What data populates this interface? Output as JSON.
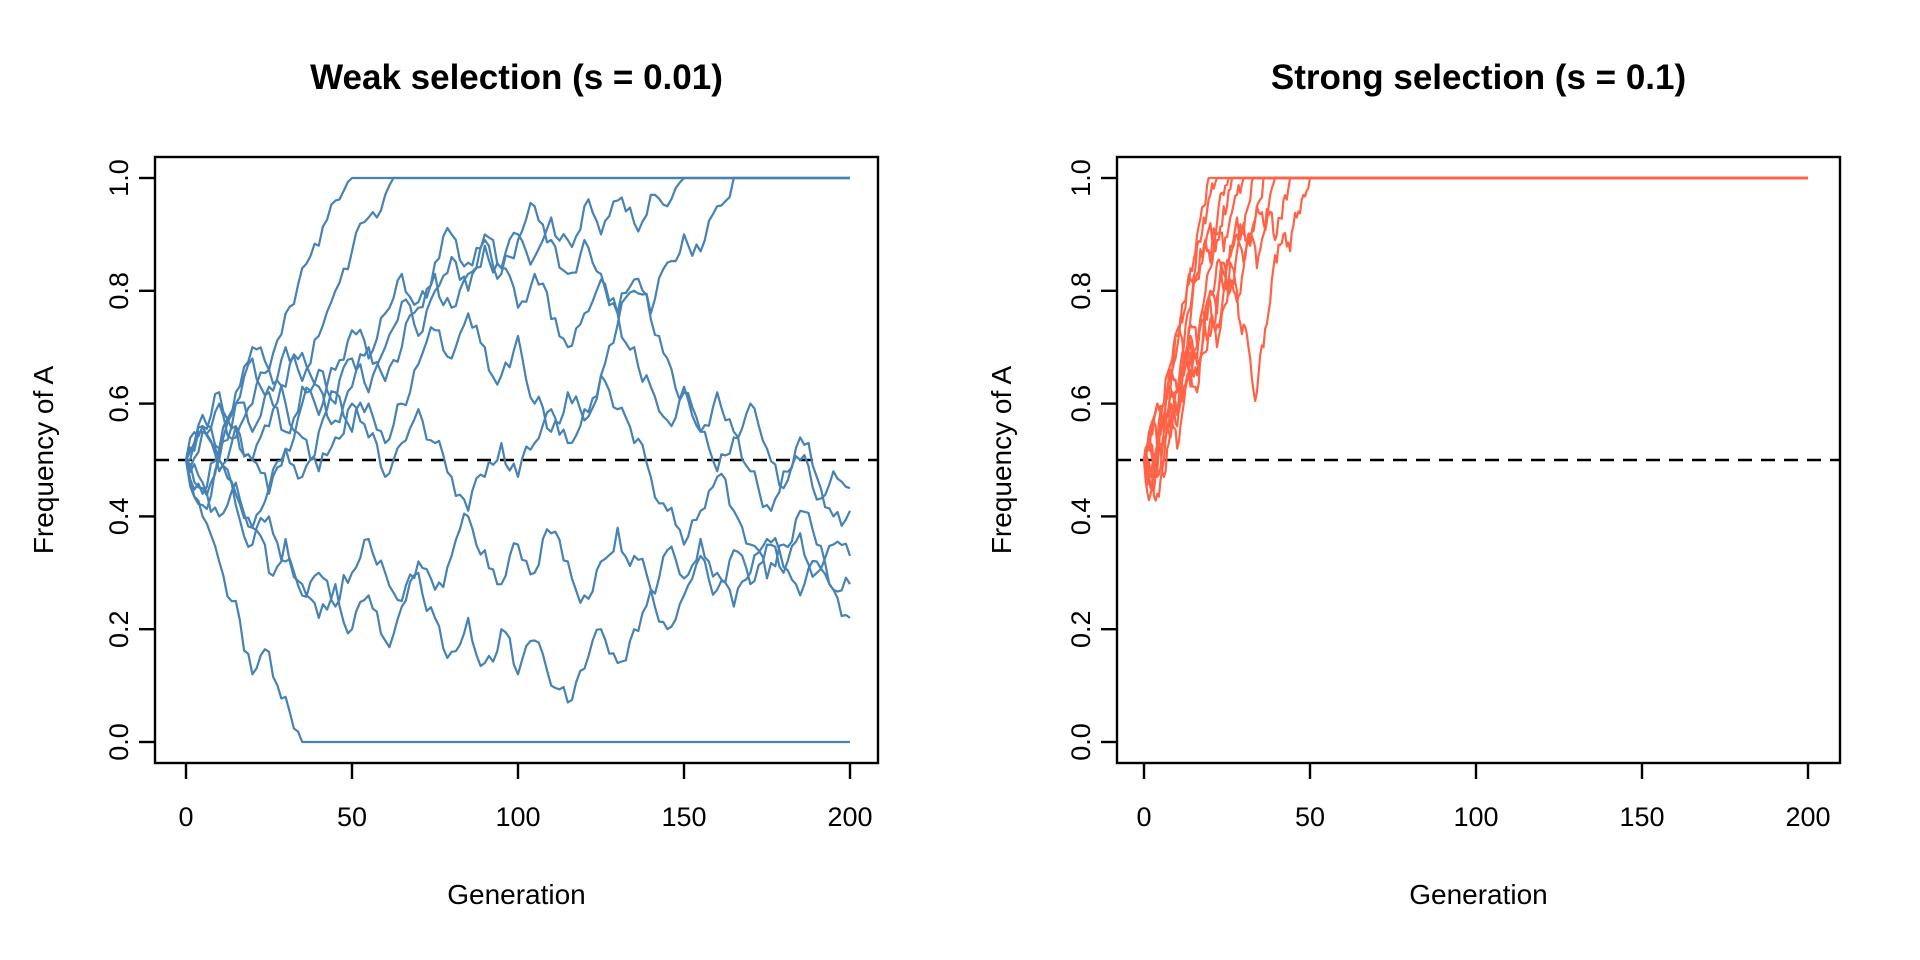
{
  "figure": {
    "background": "#ffffff",
    "n_panels": 2
  },
  "chart_data": [
    {
      "type": "line",
      "panel": "weak-selection",
      "title": "Weak selection (s = 0.01)",
      "selection_coefficient": 0.01,
      "xlabel": "Generation",
      "ylabel": "Frequency of A",
      "xlim": [
        0,
        200
      ],
      "ylim": [
        0.0,
        1.0
      ],
      "xticks": [
        0,
        50,
        100,
        150,
        200
      ],
      "ytick_values": [
        0.0,
        0.2,
        0.4,
        0.6,
        0.8,
        1.0
      ],
      "ytick_labels": [
        "0.0",
        "0.2",
        "0.4",
        "0.6",
        "0.8",
        "1.0"
      ],
      "grid": false,
      "legend": null,
      "line_color": "#4682B4",
      "reference_line": {
        "y": 0.5,
        "style": "dashed",
        "color": "#000000"
      },
      "start_frequency": 0.5,
      "n_replicates": 10,
      "x_step": 5,
      "series": [
        {
          "name": "rep-1",
          "fate": "fixed-at-1",
          "values": [
            0.5,
            0.56,
            0.5,
            0.62,
            0.7,
            0.66,
            0.76,
            0.84,
            0.88,
            0.96,
            1
          ]
        },
        {
          "name": "rep-2",
          "fate": "fixed-at-1",
          "values": [
            0.5,
            0.45,
            0.52,
            0.6,
            0.55,
            0.63,
            0.7,
            0.64,
            0.72,
            0.8,
            0.87,
            0.93,
            0.97,
            1
          ]
        },
        {
          "name": "rep-3",
          "fate": "fixed-at-1",
          "values": [
            0.5,
            0.55,
            0.48,
            0.56,
            0.5,
            0.44,
            0.52,
            0.6,
            0.66,
            0.6,
            0.68,
            0.62,
            0.7,
            0.78,
            0.72,
            0.8,
            0.86,
            0.8,
            0.88,
            0.84,
            0.9,
            0.86,
            0.93,
            0.89,
            0.95,
            0.9,
            0.96,
            0.92,
            0.97,
            0.95,
            1
          ]
        },
        {
          "name": "rep-4",
          "fate": "fixed-at-1",
          "values": [
            0.5,
            0.42,
            0.5,
            0.44,
            0.38,
            0.45,
            0.52,
            0.47,
            0.55,
            0.62,
            0.55,
            0.6,
            0.53,
            0.6,
            0.67,
            0.73,
            0.68,
            0.76,
            0.7,
            0.65,
            0.72,
            0.6,
            0.55,
            0.62,
            0.57,
            0.65,
            0.74,
            0.8,
            0.76,
            0.85,
            0.9,
            0.87,
            0.95,
            1
          ]
        },
        {
          "name": "rep-5",
          "fate": "lost-at-0",
          "values": [
            0.5,
            0.4,
            0.32,
            0.25,
            0.12,
            0.16,
            0.08,
            0
          ]
        },
        {
          "name": "rep-6",
          "fate": "segregating",
          "values": [
            0.5,
            0.44,
            0.5,
            0.42,
            0.35,
            0.4,
            0.32,
            0.26,
            0.3,
            0.24,
            0.3,
            0.36,
            0.3,
            0.25,
            0.32,
            0.27,
            0.33,
            0.4,
            0.34,
            0.28,
            0.35,
            0.3,
            0.37,
            0.32,
            0.26,
            0.32,
            0.38,
            0.33,
            0.27,
            0.34,
            0.29,
            0.36,
            0.3,
            0.24,
            0.3,
            0.36,
            0.31,
            0.26,
            0.32,
            0.27,
            0.28
          ]
        },
        {
          "name": "rep-7",
          "fate": "segregating",
          "values": [
            0.5,
            0.58,
            0.52,
            0.6,
            0.68,
            0.62,
            0.55,
            0.63,
            0.58,
            0.66,
            0.73,
            0.68,
            0.76,
            0.83,
            0.78,
            0.85,
            0.9,
            0.85,
            0.9,
            0.84,
            0.77,
            0.83,
            0.75,
            0.7,
            0.76,
            0.82,
            0.76,
            0.7,
            0.63,
            0.57,
            0.63,
            0.55,
            0.48,
            0.54,
            0.6,
            0.52,
            0.45,
            0.5,
            0.43,
            0.48,
            0.45
          ]
        },
        {
          "name": "rep-8",
          "fate": "segregating",
          "values": [
            0.5,
            0.46,
            0.4,
            0.46,
            0.38,
            0.3,
            0.36,
            0.28,
            0.22,
            0.28,
            0.2,
            0.26,
            0.18,
            0.24,
            0.3,
            0.22,
            0.16,
            0.22,
            0.14,
            0.2,
            0.12,
            0.18,
            0.1,
            0.07,
            0.13,
            0.2,
            0.14,
            0.2,
            0.27,
            0.2,
            0.26,
            0.33,
            0.27,
            0.34,
            0.28,
            0.35,
            0.3,
            0.37,
            0.3,
            0.35,
            0.33
          ]
        },
        {
          "name": "rep-9",
          "fate": "segregating",
          "values": [
            0.5,
            0.55,
            0.6,
            0.54,
            0.6,
            0.66,
            0.6,
            0.54,
            0.48,
            0.54,
            0.6,
            0.54,
            0.47,
            0.53,
            0.59,
            0.53,
            0.47,
            0.41,
            0.47,
            0.53,
            0.47,
            0.53,
            0.59,
            0.53,
            0.59,
            0.65,
            0.59,
            0.53,
            0.47,
            0.41,
            0.35,
            0.41,
            0.47,
            0.41,
            0.35,
            0.29,
            0.35,
            0.41,
            0.35,
            0.27,
            0.22
          ]
        },
        {
          "name": "rep-10",
          "fate": "segregating",
          "values": [
            0.5,
            0.56,
            0.62,
            0.56,
            0.5,
            0.56,
            0.63,
            0.69,
            0.63,
            0.57,
            0.63,
            0.7,
            0.64,
            0.7,
            0.77,
            0.83,
            0.77,
            0.83,
            0.89,
            0.83,
            0.89,
            0.95,
            0.89,
            0.83,
            0.89,
            0.83,
            0.76,
            0.82,
            0.75,
            0.68,
            0.62,
            0.55,
            0.62,
            0.55,
            0.48,
            0.42,
            0.48,
            0.54,
            0.47,
            0.4,
            0.41
          ]
        }
      ]
    },
    {
      "type": "line",
      "panel": "strong-selection",
      "title": "Strong selection (s = 0.1)",
      "selection_coefficient": 0.1,
      "xlabel": "Generation",
      "ylabel": "Frequency of A",
      "xlim": [
        0,
        200
      ],
      "ylim": [
        0.0,
        1.0
      ],
      "xticks": [
        0,
        50,
        100,
        150,
        200
      ],
      "ytick_values": [
        0.0,
        0.2,
        0.4,
        0.6,
        0.8,
        1.0
      ],
      "ytick_labels": [
        "0.0",
        "0.2",
        "0.4",
        "0.6",
        "0.8",
        "1.0"
      ],
      "grid": false,
      "legend": null,
      "line_color": "#FF6347",
      "reference_line": {
        "y": 0.5,
        "style": "dashed",
        "color": "#000000"
      },
      "start_frequency": 0.5,
      "n_replicates": 10,
      "x_step": 2,
      "series": [
        {
          "name": "rep-1",
          "fate": "fixed-at-1",
          "values": [
            0.5,
            0.44,
            0.5,
            0.58,
            0.65,
            0.72,
            0.78,
            0.84,
            0.9,
            0.95,
            1
          ]
        },
        {
          "name": "rep-2",
          "fate": "fixed-at-1",
          "values": [
            0.5,
            0.54,
            0.6,
            0.55,
            0.63,
            0.7,
            0.76,
            0.82,
            0.88,
            0.93,
            0.97,
            1
          ]
        },
        {
          "name": "rep-3",
          "fate": "fixed-at-1",
          "values": [
            0.5,
            0.47,
            0.53,
            0.6,
            0.66,
            0.62,
            0.7,
            0.77,
            0.83,
            0.88,
            0.85,
            0.92,
            0.97,
            1
          ]
        },
        {
          "name": "rep-4",
          "fate": "fixed-at-1",
          "values": [
            0.5,
            0.56,
            0.52,
            0.6,
            0.67,
            0.73,
            0.68,
            0.75,
            0.82,
            0.87,
            0.92,
            0.89,
            0.95,
            0.98,
            1
          ]
        },
        {
          "name": "rep-5",
          "fate": "fixed-at-1",
          "values": [
            0.5,
            0.46,
            0.52,
            0.58,
            0.54,
            0.62,
            0.68,
            0.74,
            0.7,
            0.78,
            0.84,
            0.9,
            0.87,
            0.93,
            0.97,
            1
          ]
        },
        {
          "name": "rep-6",
          "fate": "fixed-at-1",
          "values": [
            0.5,
            0.53,
            0.48,
            0.55,
            0.62,
            0.58,
            0.65,
            0.71,
            0.67,
            0.74,
            0.8,
            0.76,
            0.83,
            0.88,
            0.93,
            0.9,
            0.96,
            1
          ]
        },
        {
          "name": "rep-7",
          "fate": "fixed-at-1",
          "values": [
            0.5,
            0.45,
            0.52,
            0.47,
            0.55,
            0.62,
            0.68,
            0.63,
            0.7,
            0.76,
            0.72,
            0.79,
            0.85,
            0.8,
            0.87,
            0.92,
            0.88,
            0.95,
            1
          ]
        },
        {
          "name": "rep-8",
          "fate": "fixed-at-1",
          "values": [
            0.5,
            0.55,
            0.6,
            0.56,
            0.63,
            0.58,
            0.66,
            0.72,
            0.68,
            0.75,
            0.8,
            0.85,
            0.8,
            0.86,
            0.9,
            0.85,
            0.9,
            0.95,
            0.92,
            0.97,
            1
          ]
        },
        {
          "name": "rep-9",
          "fate": "fixed-at-1",
          "values": [
            0.5,
            0.48,
            0.44,
            0.5,
            0.57,
            0.52,
            0.6,
            0.66,
            0.62,
            0.69,
            0.75,
            0.7,
            0.77,
            0.82,
            0.78,
            0.84,
            0.88,
            0.84,
            0.9,
            0.94,
            0.9,
            0.96,
            1
          ]
        },
        {
          "name": "rep-10",
          "fate": "fixed-at-1",
          "values": [
            0.5,
            0.52,
            0.47,
            0.54,
            0.6,
            0.56,
            0.63,
            0.69,
            0.65,
            0.72,
            0.78,
            0.74,
            0.8,
            0.85,
            0.8,
            0.74,
            0.68,
            0.62,
            0.7,
            0.78,
            0.85,
            0.9,
            0.87,
            0.93,
            0.97,
            1
          ]
        }
      ]
    }
  ]
}
